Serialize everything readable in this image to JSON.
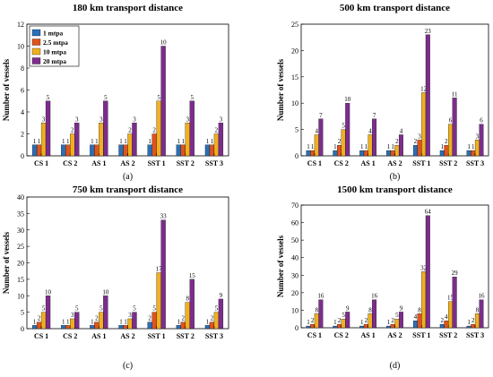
{
  "figure": {
    "panel_labels": [
      "(a)",
      "(b)",
      "(c)",
      "(d)"
    ]
  },
  "colors": {
    "series": [
      "#2B6FB6",
      "#E0531D",
      "#EFB021",
      "#7C2D8C"
    ],
    "axis": "#000000",
    "background": "#ffffff"
  },
  "chart_data": [
    {
      "type": "bar",
      "title": "180 km transport distance",
      "ylabel": "Number of vessels",
      "xlabel": "",
      "categories": [
        "CS 1",
        "CS 2",
        "AS 1",
        "AS 2",
        "SST 1",
        "SST 2",
        "SST 3"
      ],
      "ylim": [
        0,
        12
      ],
      "yticks": [
        "0",
        "2",
        "4",
        "6",
        "8",
        "10",
        "12"
      ],
      "legend_placement": "top-left",
      "grid": false,
      "series": [
        {
          "name": "1 mtpa",
          "values": [
            1,
            1,
            1,
            1,
            1,
            1,
            1
          ]
        },
        {
          "name": "2.5 mtpa",
          "values": [
            1,
            1,
            1,
            1,
            2,
            1,
            1
          ]
        },
        {
          "name": "10 mtpa",
          "values": [
            3,
            2,
            3,
            2,
            5,
            3,
            2
          ]
        },
        {
          "name": "20 mtpa",
          "values": [
            5,
            3,
            5,
            3,
            10,
            5,
            3
          ]
        }
      ]
    },
    {
      "type": "bar",
      "title": "500 km transport distance",
      "ylabel": "Number of vessels",
      "xlabel": "",
      "categories": [
        "CS 1",
        "CS 2",
        "AS 1",
        "AS 2",
        "SST 1",
        "SST 2",
        "SST 3"
      ],
      "ylim": [
        0,
        25
      ],
      "yticks": [
        "0",
        "5",
        "10",
        "15",
        "20",
        "25"
      ],
      "grid": false,
      "series": [
        {
          "name": "1 mtpa",
          "values": [
            1,
            1,
            1,
            1,
            2,
            1,
            1
          ]
        },
        {
          "name": "2.5 mtpa",
          "values": [
            1,
            2,
            1,
            1,
            3,
            2,
            1
          ]
        },
        {
          "name": "10 mtpa",
          "values": [
            4,
            5,
            4,
            2,
            12,
            6,
            3
          ]
        },
        {
          "name": "20 mtpa",
          "values": [
            7,
            10,
            7,
            4,
            23,
            11,
            6
          ]
        }
      ]
    },
    {
      "type": "bar",
      "title": "750 km transport distance",
      "ylabel": "Number of vessels",
      "xlabel": "",
      "categories": [
        "CS 1",
        "CS 2",
        "AS 1",
        "AS 2",
        "SST 1",
        "SST 2",
        "SST 3"
      ],
      "ylim": [
        0,
        40
      ],
      "yticks": [
        "0",
        "5",
        "10",
        "15",
        "20",
        "25",
        "30",
        "35",
        "40"
      ],
      "grid": false,
      "series": [
        {
          "name": "1 mtpa",
          "values": [
            1,
            1,
            1,
            1,
            2,
            1,
            1
          ]
        },
        {
          "name": "2.5 mtpa",
          "values": [
            2,
            1,
            2,
            1,
            5,
            2,
            2
          ]
        },
        {
          "name": "10 mtpa",
          "values": [
            5,
            3,
            5,
            3,
            17,
            8,
            5
          ]
        },
        {
          "name": "20 mtpa",
          "values": [
            10,
            5,
            10,
            5,
            33,
            15,
            9
          ]
        }
      ]
    },
    {
      "type": "bar",
      "title": "1500 km transport distance",
      "ylabel": "Number of vessels",
      "xlabel": "",
      "categories": [
        "CS 1",
        "CS 2",
        "AS 1",
        "AS 2",
        "SST 1",
        "SST 2",
        "SST 3"
      ],
      "ylim": [
        0,
        70
      ],
      "yticks": [
        "0",
        "10",
        "20",
        "30",
        "40",
        "50",
        "60",
        "70"
      ],
      "grid": false,
      "series": [
        {
          "name": "1 mtpa",
          "values": [
            1,
            1,
            1,
            1,
            4,
            2,
            1
          ]
        },
        {
          "name": "2.5 mtpa",
          "values": [
            2,
            2,
            2,
            2,
            8,
            4,
            2
          ]
        },
        {
          "name": "10 mtpa",
          "values": [
            8,
            5,
            8,
            5,
            32,
            15,
            8
          ]
        },
        {
          "name": "20 mtpa",
          "values": [
            16,
            9,
            16,
            9,
            64,
            29,
            16
          ]
        }
      ]
    }
  ]
}
